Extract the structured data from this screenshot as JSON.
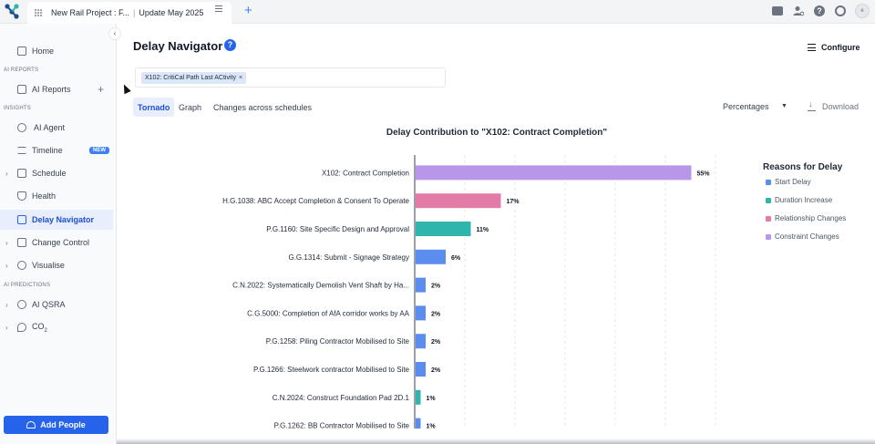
{
  "topbar": {
    "tab_title": "New Rail Project : F...",
    "tab_subtitle": "Update May 2025",
    "add_tab": "+",
    "avatar_initial": "e"
  },
  "sidebar": {
    "collapse_glyph": "‹",
    "home": "Home",
    "section_ai_reports": "AI REPORTS",
    "ai_reports": "AI Reports",
    "section_insights": "INSIGHTS",
    "ai_agent": "AI Agent",
    "timeline": "Timeline",
    "timeline_badge": "NEW",
    "schedule": "Schedule",
    "health": "Health",
    "delay_navigator": "Delay Navigator",
    "change_control": "Change Control",
    "visualise": "Visualise",
    "section_ai_predictions": "AI PREDICTIONS",
    "ai_qsra": "AI QSRA",
    "co2": "CO",
    "co2_sub": "2",
    "add_people": "Add People"
  },
  "main": {
    "title": "Delay Navigator",
    "help": "?",
    "configure": "Configure",
    "filter_chip": "X102: CritiCal Path Last ACtivity",
    "chip_close": "×",
    "tabs": [
      "Tornado",
      "Graph",
      "Changes across schedules"
    ],
    "percentages_select": "Percentages",
    "download": "Download"
  },
  "legend": {
    "title": "Reasons for Delay",
    "items": [
      {
        "label": "Start Delay",
        "color": "#5b8def"
      },
      {
        "label": "Duration Increase",
        "color": "#2fb5ab"
      },
      {
        "label": "Relationship Changes",
        "color": "#e27ba6"
      },
      {
        "label": "Constraint Changes",
        "color": "#b897ea"
      }
    ]
  },
  "chart_data": {
    "type": "bar",
    "orientation": "horizontal",
    "title": "Delay Contribution to \"X102: Contract Completion\"",
    "value_unit": "%",
    "xlim": [
      0,
      60
    ],
    "grid": true,
    "legend_position": "right",
    "categories": [
      "X102: Contract Completion",
      "H.G.1038: ABC Accept Completion & Consent To Operate",
      "P.G.1160: Site Specific Design and Approval",
      "G.G.1314: Submit - Signage Strategy",
      "C.N.2022: Systematically Demolish Vent Shaft by Ha...",
      "C.G.5000: Completion of AfA corridor works by AA",
      "P.G.1258: Piling Contractor Mobilised to Site",
      "P.G.1266: Steelwork contractor Mobilised to Site",
      "C.N.2024: Construct Foundation Pad 2D.1",
      "P.G.1262: BB Contractor Mobilised to Site"
    ],
    "values": [
      55,
      17,
      11,
      6,
      2,
      2,
      2,
      2,
      1,
      1
    ],
    "labels": [
      "55%",
      "17%",
      "11%",
      "6%",
      "2%",
      "2%",
      "2%",
      "2%",
      "1%",
      "1%"
    ],
    "reasons": [
      "Constraint Changes",
      "Relationship Changes",
      "Duration Increase",
      "Start Delay",
      "Start Delay",
      "Start Delay",
      "Start Delay",
      "Start Delay",
      "Duration Increase",
      "Start Delay"
    ]
  }
}
